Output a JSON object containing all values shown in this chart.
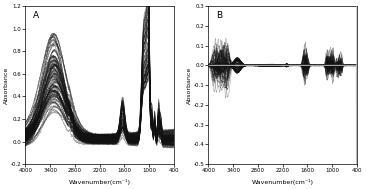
{
  "panel_A": {
    "label": "A",
    "xlim": [
      4000,
      400
    ],
    "ylim": [
      -0.2,
      1.2
    ],
    "yticks": [
      -0.2,
      0.0,
      0.2,
      0.4,
      0.6,
      0.8,
      1.0,
      1.2
    ],
    "xticks": [
      4000,
      3400,
      2800,
      2200,
      1600,
      1000,
      400
    ],
    "xlabel": "Wavenumber(cm⁻¹)",
    "ylabel": "Absorbance",
    "n_spectra": 80,
    "line_color": "#111111",
    "line_alpha": 0.35,
    "line_width": 0.35
  },
  "panel_B": {
    "label": "B",
    "xlim": [
      4000,
      400
    ],
    "ylim": [
      -0.5,
      0.3
    ],
    "yticks": [
      -0.5,
      -0.4,
      -0.3,
      -0.2,
      -0.1,
      0.0,
      0.1,
      0.2,
      0.3
    ],
    "xticks": [
      4000,
      3400,
      2800,
      2200,
      1600,
      1000,
      400
    ],
    "xlabel": "Wavenumber(cm⁻¹)",
    "ylabel": "Absorbance",
    "line_color": "#111111",
    "line_alpha": 0.4,
    "line_width": 0.35,
    "n_spectra": 80,
    "vline_color": "#bbbbbb",
    "vline_x": 400,
    "outlier_color": "#bbbbbb"
  },
  "background_color": "#ffffff",
  "fig_width": 3.66,
  "fig_height": 1.89,
  "dpi": 100
}
